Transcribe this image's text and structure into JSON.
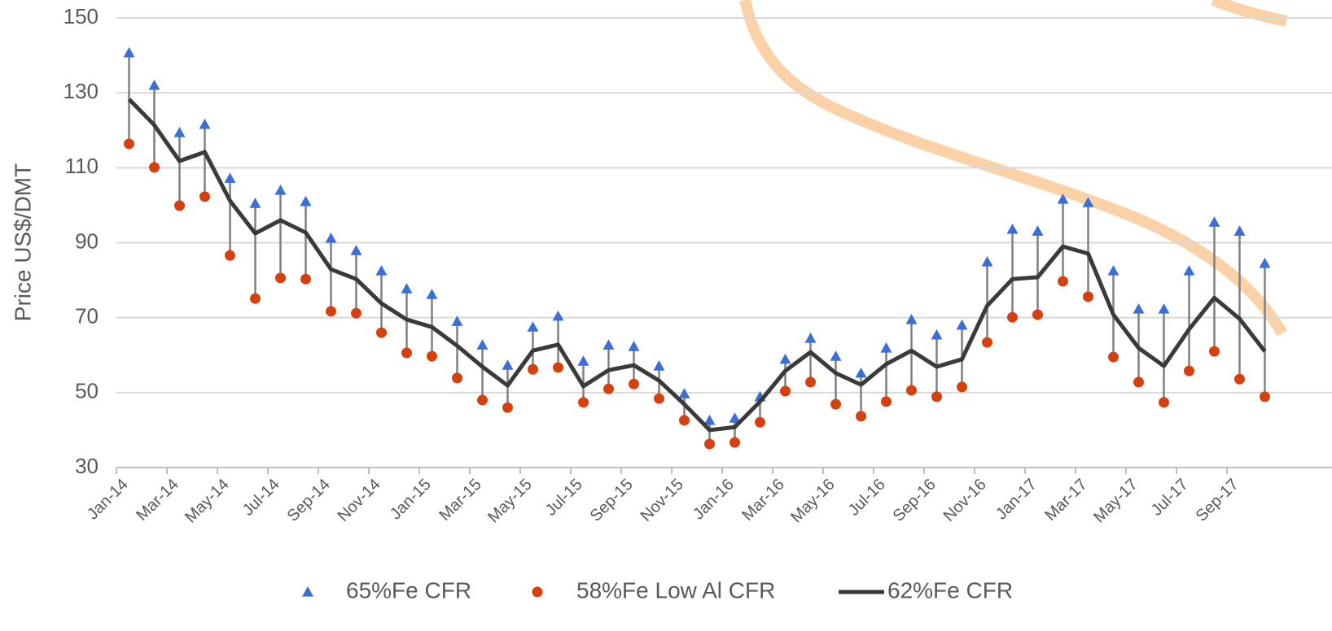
{
  "chart_data": {
    "type": "line",
    "y_label": "Price US$/DMT",
    "categories": [
      "Jan-14",
      null,
      "Mar-14",
      null,
      "May-14",
      null,
      "Jul-14",
      null,
      "Sep-14",
      null,
      "Nov-14",
      null,
      "Jan-15",
      null,
      "Mar-15",
      null,
      "May-15",
      null,
      "Jul-15",
      null,
      "Sep-15",
      null,
      "Nov-15",
      null,
      "Jan-16",
      null,
      "Mar-16",
      null,
      "May-16",
      null,
      "Jul-16",
      null,
      "Sep-16",
      null,
      "Nov-16",
      null,
      "Jan-17",
      null,
      "Mar-17",
      null,
      "May-17",
      null,
      "Jul-17",
      null,
      "Sep-17",
      null
    ],
    "series": [
      {
        "name": "65%Fe CFR",
        "color": "#3a6fd8",
        "marker": "triangle",
        "values": [
          140.7,
          132,
          119.4,
          121.6,
          107.2,
          100.5,
          104,
          101,
          91.2,
          87.9,
          82.5,
          77.7,
          76.2,
          69,
          62.7,
          57.3,
          67.5,
          70.4,
          58.4,
          62.7,
          62.3,
          57.1,
          49.7,
          42.6,
          43.2,
          48.9,
          58.9,
          64.5,
          59.7,
          55.2,
          61.9,
          69.5,
          65.4,
          68,
          84.9,
          93.6,
          93.1,
          101.6,
          100.7,
          82.5,
          72.3,
          72.3,
          82.5,
          95.5,
          93.1,
          84.5
        ]
      },
      {
        "name": "58%Fe Low Al CFR",
        "color": "#d6400e",
        "marker": "circle",
        "values": [
          116.4,
          110.1,
          99.9,
          102.3,
          86.6,
          75.1,
          80.6,
          80.3,
          71.7,
          71.2,
          66,
          60.6,
          59.7,
          53.9,
          48,
          46,
          56.2,
          56.7,
          47.4,
          51,
          52.3,
          48.4,
          42.6,
          36.3,
          36.7,
          42.1,
          50.4,
          52.8,
          46.9,
          43.7,
          47.6,
          50.6,
          48.9,
          51.5,
          63.4,
          70.1,
          70.8,
          79.7,
          75.6,
          59.5,
          52.8,
          47.4,
          55.8,
          61,
          53.6,
          48.9
        ]
      },
      {
        "name": "62%Fe CFR",
        "color": "#3a3a3a",
        "marker": "line",
        "values": [
          128.3,
          121.4,
          111.8,
          114.2,
          101.2,
          92.5,
          96,
          92.7,
          82.9,
          80.3,
          73.8,
          69.5,
          67.5,
          62.5,
          56.9,
          51.9,
          61.2,
          62.8,
          51.7,
          56,
          57.3,
          53.2,
          46.9,
          40,
          40.8,
          47.6,
          55.8,
          60.8,
          55.2,
          52.1,
          57.6,
          61.2,
          56.9,
          58.9,
          73.2,
          80.3,
          80.8,
          89,
          87.1,
          70.8,
          61.9,
          57.1,
          66.9,
          75.3,
          69.7,
          61
        ]
      }
    ],
    "high_low_lines": true,
    "ylim": [
      30,
      150
    ],
    "yticks": [
      30,
      50,
      70,
      90,
      110,
      130,
      150
    ],
    "grid": true
  }
}
